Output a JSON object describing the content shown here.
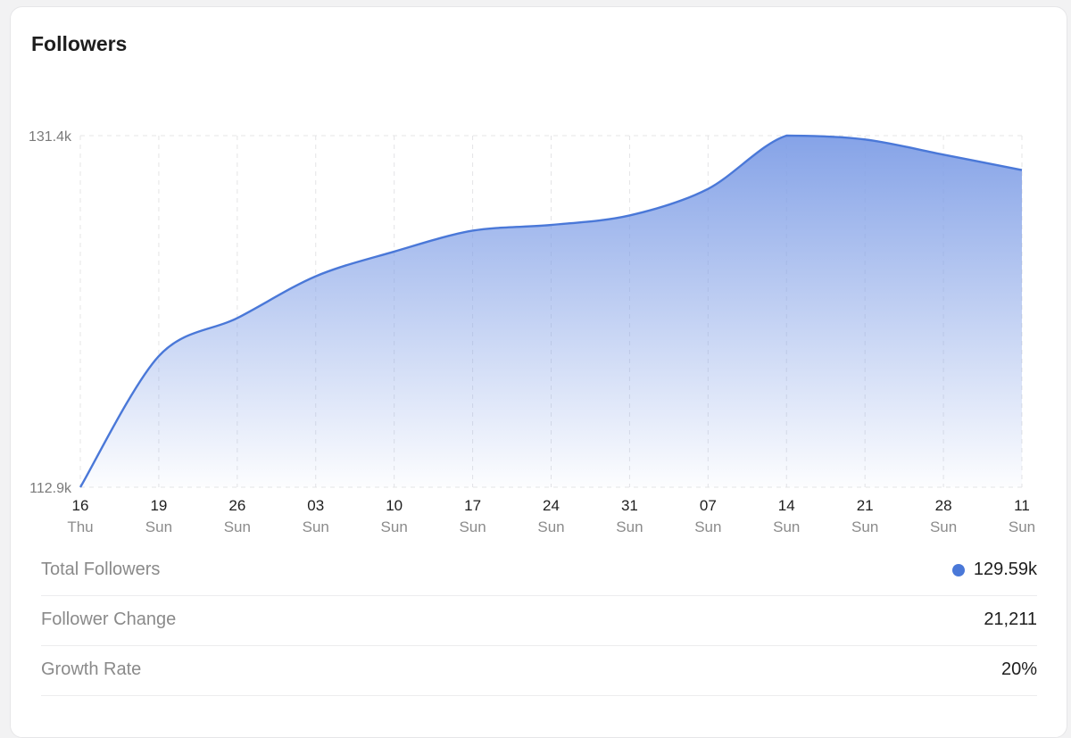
{
  "card": {
    "title": "Followers"
  },
  "colors": {
    "line": "#4a78d8",
    "fill_top": "#7f9ee6",
    "grid": "#e4e4e6"
  },
  "chart_data": {
    "type": "area",
    "title": "Followers",
    "xlabel": "",
    "ylabel": "",
    "ylim": [
      112.9,
      131.4
    ],
    "y_unit": "k",
    "yticks": [
      "131.4k",
      "112.9k"
    ],
    "grid": true,
    "categories": [
      {
        "day": "16",
        "weekday": "Thu"
      },
      {
        "day": "19",
        "weekday": "Sun"
      },
      {
        "day": "26",
        "weekday": "Sun"
      },
      {
        "day": "03",
        "weekday": "Sun"
      },
      {
        "day": "10",
        "weekday": "Sun"
      },
      {
        "day": "17",
        "weekday": "Sun"
      },
      {
        "day": "24",
        "weekday": "Sun"
      },
      {
        "day": "31",
        "weekday": "Sun"
      },
      {
        "day": "07",
        "weekday": "Sun"
      },
      {
        "day": "14",
        "weekday": "Sun"
      },
      {
        "day": "21",
        "weekday": "Sun"
      },
      {
        "day": "28",
        "weekday": "Sun"
      },
      {
        "day": "11",
        "weekday": "Sun"
      }
    ],
    "series": [
      {
        "values": [
          112.9,
          119.8,
          121.8,
          124.0,
          125.3,
          126.4,
          126.7,
          127.2,
          128.6,
          131.4,
          131.2,
          130.4,
          129.59
        ]
      }
    ]
  },
  "stats": [
    {
      "label": "Total Followers",
      "value": "129.59k",
      "dot": true
    },
    {
      "label": "Follower Change",
      "value": "21,211",
      "dot": false
    },
    {
      "label": "Growth Rate",
      "value": "20%",
      "dot": false
    }
  ]
}
